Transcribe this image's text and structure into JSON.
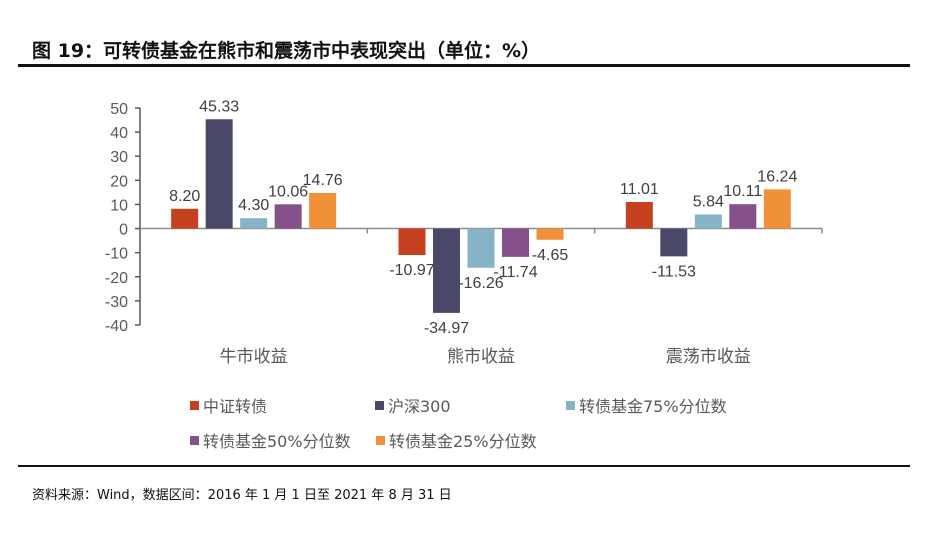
{
  "title": "图 19：可转债基金在熊市和震荡市中表现突出（单位：%）",
  "source": "资料来源：Wind，数据区间：2016 年 1 月 1 日至 2021 年 8 月 31 日",
  "chart_data": {
    "type": "bar",
    "categories": [
      "牛市收益",
      "熊市收益",
      "震荡市收益"
    ],
    "series": [
      {
        "name": "中证转债",
        "color": "#c5401f",
        "values": [
          8.2,
          -10.97,
          11.01
        ]
      },
      {
        "name": "沪深300",
        "color": "#4a4868",
        "values": [
          45.33,
          -34.97,
          -11.53
        ]
      },
      {
        "name": "转债基金75%分位数",
        "color": "#87b3c6",
        "values": [
          4.3,
          -16.26,
          5.84
        ]
      },
      {
        "name": "转债基金50%分位数",
        "color": "#86508a",
        "values": [
          10.06,
          -11.74,
          10.11
        ]
      },
      {
        "name": "转债基金25%分位数",
        "color": "#f0913a",
        "values": [
          14.76,
          -4.65,
          16.24
        ]
      }
    ],
    "ylim": [
      -40,
      50
    ],
    "yticks": [
      "50",
      "40",
      "30",
      "20",
      "10",
      "0",
      "-10",
      "-20",
      "-30",
      "-40"
    ],
    "grid": false,
    "legend_position": "bottom"
  }
}
